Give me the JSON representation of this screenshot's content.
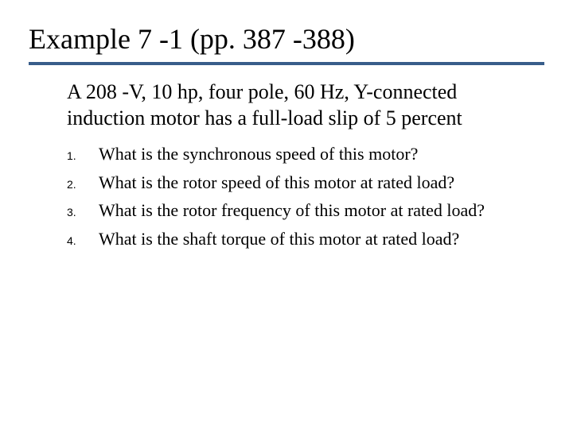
{
  "title": "Example 7 -1 (pp. 387 -388)",
  "title_fontsize": 36,
  "title_rule_color": "#385d8a",
  "intro": "A 208 -V, 10 hp, four pole, 60 Hz, Y-connected induction motor has a full-load slip of 5 percent",
  "intro_fontsize": 26,
  "list_num_fontsize": 14,
  "list_text_fontsize": 22,
  "list": [
    {
      "num": "1.",
      "text": "What is the synchronous speed of this motor?"
    },
    {
      "num": "2.",
      "text": "What is the rotor speed of this motor at rated load?"
    },
    {
      "num": "3.",
      "text": "What is the rotor frequency of this motor at rated load?"
    },
    {
      "num": "4.",
      "text": "What is the shaft torque of this motor at rated load?"
    }
  ],
  "background_color": "#ffffff",
  "text_color": "#000000"
}
